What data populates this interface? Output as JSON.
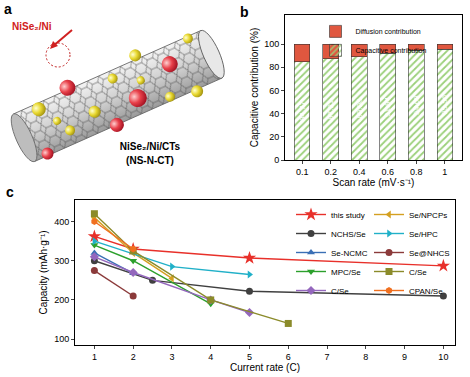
{
  "diagram": {
    "panel": "a",
    "particle_label": "NiSe₂/Ni",
    "name": "NiSe₂/Ni/CTs",
    "abbreviation": "(NS-N-CT)"
  },
  "chart_data": [
    {
      "panel": "b",
      "type": "bar",
      "stacked": true,
      "grid": false,
      "legend": "upper center",
      "x_label": "Scan rate (mV·s⁻¹)",
      "y_label": "Capacitive contribution (%)",
      "categories": [
        0.1,
        0.2,
        0.4,
        0.6,
        0.8,
        1
      ],
      "series": [
        {
          "name": "Capacitive contribution",
          "color": "#4e8f2c",
          "marker": "hatch",
          "data_labels": true,
          "values": [
            84.77,
            87.21,
            89.08,
            91.94,
            94.68,
            95.56
          ]
        },
        {
          "name": "Diffusion contribution",
          "color": "#e0573f",
          "marker": "solid",
          "values": [
            15.23,
            12.79,
            10.92,
            8.06,
            5.32,
            4.44
          ]
        }
      ],
      "ylim": [
        0,
        125
      ],
      "yticks": [
        0,
        20,
        40,
        60,
        80,
        100
      ]
    },
    {
      "panel": "c",
      "type": "line",
      "grid": false,
      "legend": "upper right",
      "x_label": "Current rate (C)",
      "y_label": "Capacity (mAh·g⁻¹)",
      "xlim": [
        0.5,
        10.3
      ],
      "xticks": [
        1,
        2,
        3,
        4,
        5,
        6,
        7,
        8,
        9,
        10
      ],
      "ylim": [
        85,
        455
      ],
      "yticks": [
        100,
        200,
        300,
        400
      ],
      "series": [
        {
          "name": "this study",
          "color": "#e8302a",
          "marker": "star",
          "line_style": "solid",
          "x": [
            1,
            2,
            5,
            10
          ],
          "values": [
            362,
            330,
            307,
            287
          ]
        },
        {
          "name": "NCHS/Se",
          "color": "#404040",
          "marker": "circle",
          "line_style": "solid",
          "x": [
            1,
            2.5,
            5,
            10
          ],
          "values": [
            300,
            250,
            222,
            210
          ]
        },
        {
          "name": "Se-NCMC",
          "color": "#3a6fb5",
          "marker": "triangle-up",
          "line_style": "solid",
          "x": [
            1,
            2
          ],
          "values": [
            320,
            268
          ]
        },
        {
          "name": "MPC/Se",
          "color": "#2ca02c",
          "marker": "triangle-down",
          "line_style": "solid",
          "x": [
            1,
            2,
            4
          ],
          "values": [
            340,
            300,
            190
          ]
        },
        {
          "name": "C/Se",
          "color": "#9467bd",
          "marker": "diamond",
          "line_style": "solid",
          "x": [
            1,
            2,
            4,
            5
          ],
          "values": [
            310,
            270,
            200,
            168
          ]
        },
        {
          "name": "Se/NPCPs",
          "color": "#d4a020",
          "marker": "triangle-left",
          "line_style": "solid",
          "x": [
            1,
            2,
            3
          ],
          "values": [
            410,
            320,
            255
          ]
        },
        {
          "name": "Se/HPC",
          "color": "#20b0c8",
          "marker": "triangle-right",
          "line_style": "solid",
          "x": [
            1,
            3,
            5
          ],
          "values": [
            350,
            285,
            265
          ]
        },
        {
          "name": "Se@NHCS",
          "color": "#8b3a3a",
          "marker": "circle",
          "line_style": "solid",
          "x": [
            1,
            2
          ],
          "values": [
            275,
            210
          ]
        },
        {
          "name": "C/Se",
          "color": "#8b8b2a",
          "marker": "square",
          "line_style": "solid",
          "x": [
            1,
            2,
            4,
            6
          ],
          "values": [
            420,
            325,
            200,
            140
          ]
        },
        {
          "name": "CPAN/Se",
          "color": "#f07020",
          "marker": "hexagon",
          "line_style": "solid",
          "x": [
            1,
            2
          ],
          "values": [
            400,
            330
          ]
        }
      ]
    }
  ]
}
